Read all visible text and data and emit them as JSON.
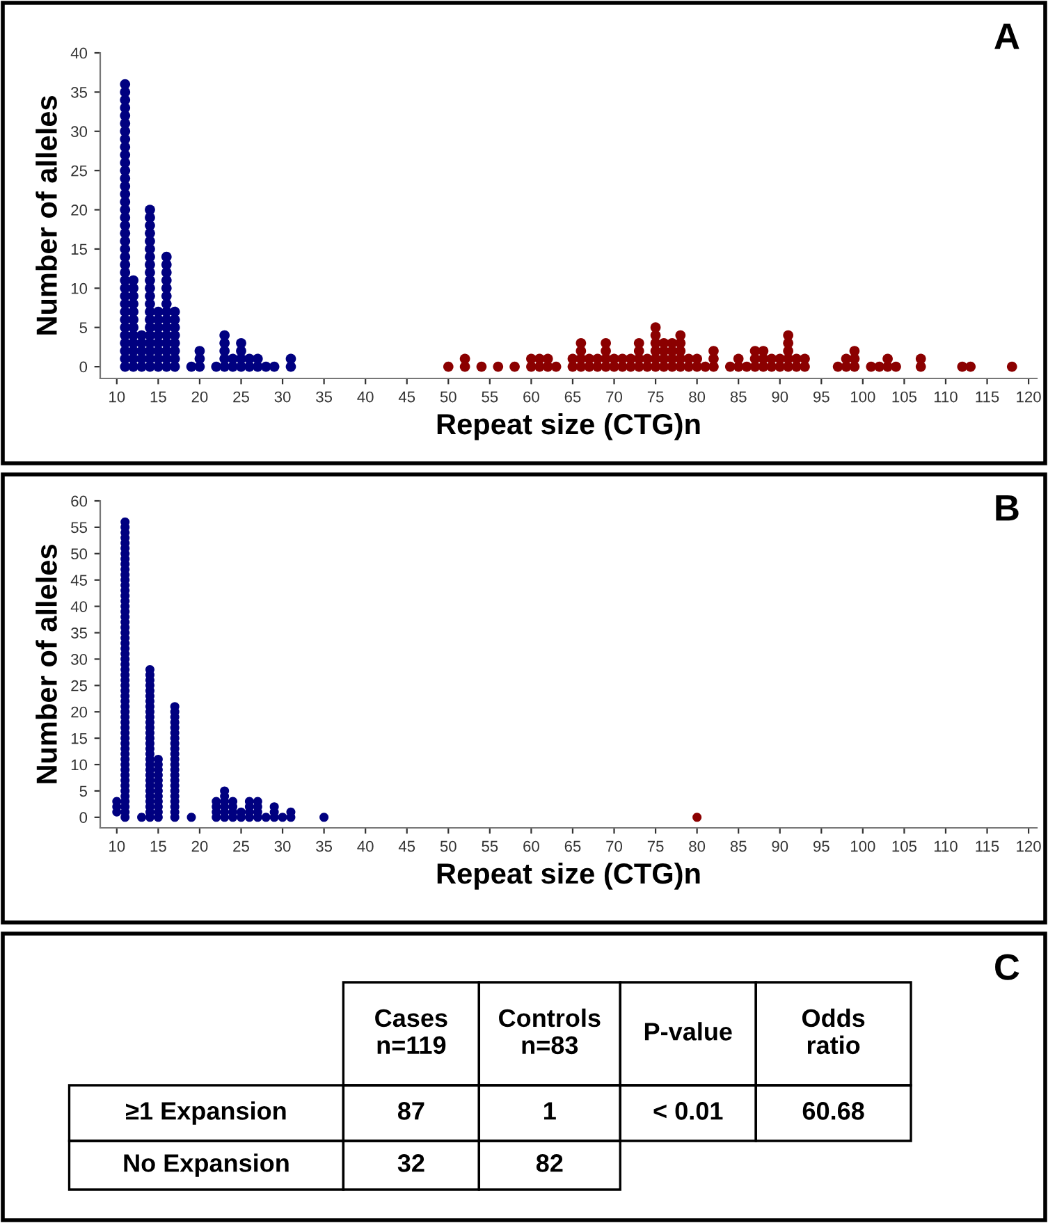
{
  "chart_data": [
    {
      "type": "scatter",
      "xlabel": "Repeat size (CTG)n",
      "ylabel": "Number of alleles",
      "annotations": [
        "A"
      ],
      "xlim": [
        8,
        121
      ],
      "ylim": [
        -1.5,
        40
      ],
      "xticks": [
        10,
        15,
        20,
        25,
        30,
        35,
        40,
        45,
        50,
        55,
        60,
        65,
        70,
        75,
        80,
        85,
        90,
        95,
        100,
        105,
        110,
        115,
        120
      ],
      "yticks": [
        0,
        5,
        10,
        15,
        20,
        25,
        30,
        35,
        40
      ],
      "grid": false,
      "marker": "circle",
      "series": [
        {
          "color": "#000080",
          "x": [
            11,
            11,
            11,
            11,
            11,
            11,
            11,
            11,
            11,
            11,
            11,
            11,
            11,
            11,
            11,
            11,
            11,
            11,
            11,
            11,
            11,
            11,
            11,
            11,
            11,
            11,
            11,
            11,
            11,
            11,
            11,
            11,
            11,
            11,
            11,
            11,
            11,
            12,
            12,
            12,
            12,
            12,
            12,
            12,
            12,
            12,
            12,
            12,
            12,
            13,
            13,
            13,
            13,
            13,
            14,
            14,
            14,
            14,
            14,
            14,
            14,
            14,
            14,
            14,
            14,
            14,
            14,
            14,
            14,
            14,
            14,
            14,
            14,
            14,
            14,
            15,
            15,
            15,
            15,
            15,
            15,
            15,
            15,
            16,
            16,
            16,
            16,
            16,
            16,
            16,
            16,
            16,
            16,
            16,
            16,
            16,
            16,
            16,
            17,
            17,
            17,
            17,
            17,
            17,
            17,
            17,
            19,
            20,
            20,
            20,
            22,
            23,
            23,
            23,
            23,
            23,
            24,
            24,
            25,
            25,
            25,
            25,
            26,
            26,
            27,
            27,
            28,
            29,
            31,
            31
          ],
          "values": [
            0,
            1,
            2,
            3,
            4,
            5,
            6,
            7,
            8,
            9,
            10,
            11,
            12,
            13,
            14,
            15,
            16,
            17,
            18,
            19,
            20,
            21,
            22,
            23,
            24,
            25,
            26,
            27,
            28,
            29,
            30,
            31,
            32,
            33,
            34,
            35,
            36,
            0,
            1,
            2,
            3,
            4,
            5,
            6,
            7,
            8,
            9,
            10,
            11,
            0,
            1,
            2,
            3,
            4,
            0,
            1,
            2,
            3,
            4,
            5,
            6,
            7,
            8,
            9,
            10,
            11,
            12,
            13,
            14,
            15,
            16,
            17,
            18,
            19,
            20,
            0,
            1,
            2,
            3,
            4,
            5,
            6,
            7,
            0,
            1,
            2,
            3,
            4,
            5,
            6,
            7,
            8,
            9,
            10,
            11,
            12,
            13,
            14,
            0,
            1,
            2,
            3,
            4,
            5,
            6,
            7,
            0,
            0,
            1,
            2,
            0,
            0,
            1,
            2,
            3,
            4,
            0,
            1,
            0,
            1,
            2,
            3,
            0,
            1,
            0,
            1,
            0,
            0,
            0,
            1
          ]
        },
        {
          "color": "#8b0000",
          "x": [
            50,
            52,
            52,
            54,
            56,
            58,
            60,
            60,
            61,
            61,
            62,
            62,
            63,
            65,
            65,
            66,
            66,
            66,
            66,
            67,
            67,
            68,
            68,
            69,
            69,
            69,
            69,
            70,
            70,
            71,
            71,
            72,
            72,
            73,
            73,
            73,
            73,
            74,
            74,
            75,
            75,
            75,
            75,
            75,
            75,
            76,
            76,
            76,
            76,
            77,
            77,
            77,
            77,
            78,
            78,
            78,
            78,
            78,
            79,
            79,
            80,
            80,
            81,
            82,
            82,
            82,
            84,
            85,
            85,
            86,
            87,
            87,
            87,
            88,
            88,
            88,
            89,
            89,
            90,
            90,
            91,
            91,
            91,
            91,
            91,
            92,
            92,
            93,
            93,
            97,
            98,
            98,
            99,
            99,
            99,
            101,
            102,
            103,
            103,
            104,
            107,
            107,
            112,
            113,
            118
          ],
          "values": [
            0,
            0,
            1,
            0,
            0,
            0,
            0,
            1,
            0,
            1,
            0,
            1,
            0,
            0,
            1,
            0,
            1,
            2,
            3,
            0,
            1,
            0,
            1,
            0,
            1,
            2,
            3,
            0,
            1,
            0,
            1,
            0,
            1,
            0,
            1,
            2,
            3,
            0,
            1,
            0,
            1,
            2,
            3,
            4,
            5,
            0,
            1,
            2,
            3,
            0,
            1,
            2,
            3,
            0,
            1,
            2,
            3,
            4,
            0,
            1,
            0,
            1,
            0,
            0,
            1,
            2,
            0,
            0,
            1,
            0,
            0,
            1,
            2,
            0,
            1,
            2,
            0,
            1,
            0,
            1,
            0,
            1,
            2,
            3,
            4,
            0,
            1,
            0,
            1,
            0,
            0,
            1,
            0,
            1,
            2,
            0,
            0,
            0,
            1,
            0,
            0,
            1,
            0,
            0,
            0
          ]
        }
      ]
    },
    {
      "type": "scatter",
      "xlabel": "Repeat size (CTG)n",
      "ylabel": "Number of alleles",
      "annotations": [
        "B"
      ],
      "xlim": [
        8,
        121
      ],
      "ylim": [
        -2,
        60
      ],
      "xticks": [
        10,
        15,
        20,
        25,
        30,
        35,
        40,
        45,
        50,
        55,
        60,
        65,
        70,
        75,
        80,
        85,
        90,
        95,
        100,
        105,
        110,
        115,
        120
      ],
      "yticks": [
        0,
        5,
        10,
        15,
        20,
        25,
        30,
        35,
        40,
        45,
        50,
        55,
        60
      ],
      "grid": false,
      "marker": "circle",
      "series": [
        {
          "color": "#000080",
          "x": [
            10,
            10,
            10,
            11,
            11,
            11,
            11,
            11,
            11,
            11,
            11,
            11,
            11,
            11,
            11,
            11,
            11,
            11,
            11,
            11,
            11,
            11,
            11,
            11,
            11,
            11,
            11,
            11,
            11,
            11,
            11,
            11,
            11,
            11,
            11,
            11,
            11,
            11,
            11,
            11,
            11,
            11,
            11,
            11,
            11,
            11,
            11,
            11,
            11,
            11,
            11,
            11,
            11,
            11,
            11,
            11,
            11,
            11,
            11,
            11,
            13,
            14,
            14,
            14,
            14,
            14,
            14,
            14,
            14,
            14,
            14,
            14,
            14,
            14,
            14,
            14,
            14,
            14,
            14,
            14,
            14,
            14,
            14,
            14,
            14,
            14,
            14,
            14,
            14,
            14,
            15,
            15,
            15,
            15,
            15,
            15,
            15,
            15,
            15,
            15,
            15,
            15,
            17,
            17,
            17,
            17,
            17,
            17,
            17,
            17,
            17,
            17,
            17,
            17,
            17,
            17,
            17,
            17,
            17,
            17,
            17,
            17,
            17,
            17,
            19,
            22,
            22,
            22,
            22,
            23,
            23,
            23,
            23,
            23,
            23,
            24,
            24,
            24,
            24,
            25,
            25,
            26,
            26,
            26,
            26,
            27,
            27,
            27,
            27,
            28,
            29,
            29,
            29,
            30,
            31,
            31,
            35
          ],
          "values": [
            1,
            2,
            3,
            0,
            1,
            2,
            3,
            4,
            5,
            6,
            7,
            8,
            9,
            10,
            11,
            12,
            13,
            14,
            15,
            16,
            17,
            18,
            19,
            20,
            21,
            22,
            23,
            24,
            25,
            26,
            27,
            28,
            29,
            30,
            31,
            32,
            33,
            34,
            35,
            36,
            37,
            38,
            39,
            40,
            41,
            42,
            43,
            44,
            45,
            46,
            47,
            48,
            49,
            50,
            51,
            52,
            53,
            54,
            55,
            56,
            0,
            0,
            1,
            2,
            3,
            4,
            5,
            6,
            7,
            8,
            9,
            10,
            11,
            12,
            13,
            14,
            15,
            16,
            17,
            18,
            19,
            20,
            21,
            22,
            23,
            24,
            25,
            26,
            27,
            28,
            0,
            1,
            2,
            3,
            4,
            5,
            6,
            7,
            8,
            9,
            10,
            11,
            0,
            1,
            2,
            3,
            4,
            5,
            6,
            7,
            8,
            9,
            10,
            11,
            12,
            13,
            14,
            15,
            16,
            17,
            18,
            19,
            20,
            21,
            0,
            0,
            1,
            2,
            3,
            0,
            1,
            2,
            3,
            4,
            5,
            0,
            1,
            2,
            3,
            0,
            1,
            0,
            1,
            2,
            3,
            0,
            1,
            2,
            3,
            0,
            0,
            1,
            2,
            0,
            0,
            1,
            0
          ]
        },
        {
          "color": "#8b0000",
          "x": [
            80
          ],
          "values": [
            0
          ]
        }
      ]
    },
    {
      "type": "other",
      "annotations": [
        "C"
      ],
      "categories": [
        "Cases\nn=119",
        "Controls\nn=83",
        "P-value",
        "Odds\nratio"
      ],
      "y_categories": [
        "≥1 Expansion",
        "No Expansion"
      ],
      "cell_labels": [
        [
          "87",
          "1",
          "< 0.01",
          "60.68"
        ],
        [
          "32",
          "82",
          null,
          null
        ]
      ]
    }
  ]
}
